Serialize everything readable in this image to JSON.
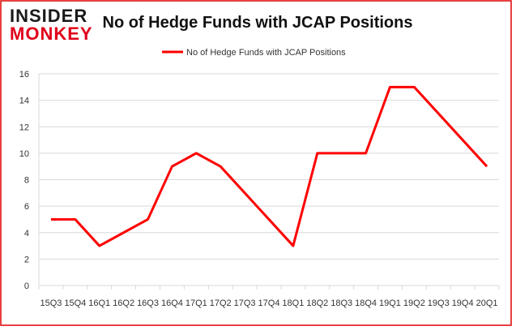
{
  "logo": {
    "top": "INSIDER",
    "bottom": "MONKEY"
  },
  "chart_data": {
    "type": "line",
    "title": "No of Hedge Funds with JCAP Positions",
    "categories": [
      "15Q3",
      "15Q4",
      "16Q1",
      "16Q2",
      "16Q3",
      "16Q4",
      "17Q1",
      "17Q2",
      "17Q3",
      "17Q4",
      "18Q1",
      "18Q2",
      "18Q3",
      "18Q4",
      "19Q1",
      "19Q2",
      "19Q3",
      "19Q4",
      "20Q1"
    ],
    "series": [
      {
        "name": "No of Hedge Funds with JCAP Positions",
        "color": "#ff0000",
        "values": [
          5,
          5,
          3,
          4,
          5,
          9,
          10,
          9,
          7,
          5,
          3,
          10,
          10,
          10,
          15,
          15,
          13,
          11,
          9
        ]
      }
    ],
    "ylim": [
      0,
      16
    ],
    "yticks": [
      0,
      2,
      4,
      6,
      8,
      10,
      12,
      14,
      16
    ],
    "grid": true,
    "legend": "top"
  }
}
